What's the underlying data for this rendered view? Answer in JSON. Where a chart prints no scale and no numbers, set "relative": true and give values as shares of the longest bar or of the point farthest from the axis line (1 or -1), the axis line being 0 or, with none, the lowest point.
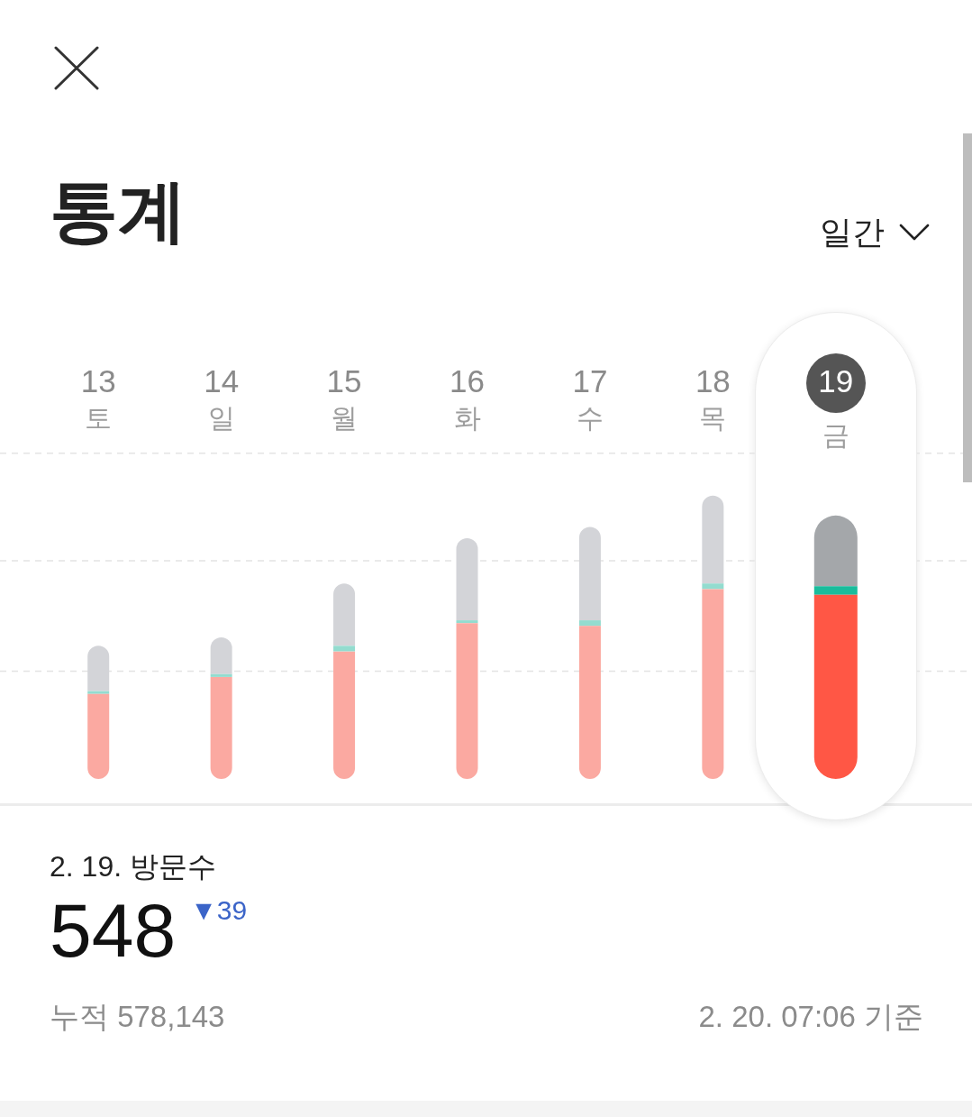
{
  "chart_data": {
    "type": "bar",
    "title": "통계",
    "categories": [
      "13\n토",
      "14\n일",
      "15\n월",
      "16\n화",
      "17\n수",
      "18\n목",
      "19\n금"
    ],
    "series": [
      {
        "colors": [
          "#fba9a1",
          "#fba9a1",
          "#fba9a1",
          "#fba9a1",
          "#fba9a1",
          "#fba9a1",
          "#ff5745"
        ],
        "values": [
          0.3,
          0.36,
          0.45,
          0.55,
          0.54,
          0.67,
          0.65
        ]
      },
      {
        "colors": [
          "#93dccf",
          "#93dccf",
          "#93dccf",
          "#93dccf",
          "#93dccf",
          "#93dccf",
          "#1abc9c"
        ],
        "values": [
          0.01,
          0.01,
          0.02,
          0.01,
          0.02,
          0.02,
          0.03
        ]
      },
      {
        "colors": [
          "#d3d4d8",
          "#d3d4d8",
          "#d3d4d8",
          "#d3d4d8",
          "#d3d4d8",
          "#d3d4d8",
          "#a4a7aa"
        ],
        "values": [
          0.16,
          0.13,
          0.22,
          0.29,
          0.33,
          0.31,
          0.25
        ]
      }
    ],
    "stacked": true,
    "relative": true,
    "ref_lines": [
      {
        "axis": "y",
        "value": 0.38,
        "color": "#e4e4e4",
        "line_style": "dashed"
      },
      {
        "axis": "y",
        "value": 0.77,
        "color": "#e4e4e4",
        "line_style": "dashed"
      },
      {
        "axis": "y",
        "value": 1.15,
        "color": "#e4e4e4",
        "line_style": "dashed"
      }
    ],
    "annotations": [
      "일간",
      "2. 19. 방문수",
      "548",
      "▼39",
      "누적 578,143",
      "2. 20. 07:06 기준"
    ]
  }
}
